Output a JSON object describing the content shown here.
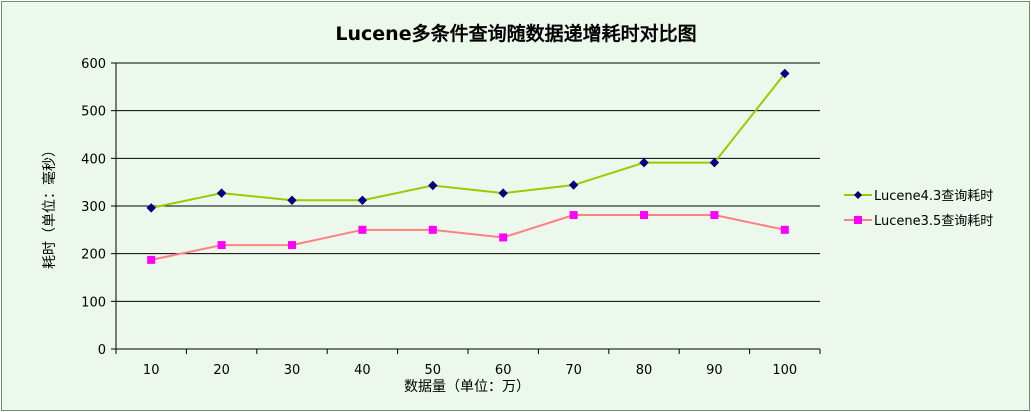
{
  "chart_data": {
    "type": "line",
    "title": "Lucene多条件查询随数据递增耗时对比图",
    "xlabel": "数据量（单位：万）",
    "ylabel": "耗时（单位：毫秒）",
    "categories": [
      "10",
      "20",
      "30",
      "40",
      "50",
      "60",
      "70",
      "80",
      "90",
      "100"
    ],
    "ylim": [
      0,
      600
    ],
    "yticks": [
      0,
      100,
      200,
      300,
      400,
      500,
      600
    ],
    "grid": true,
    "legend_position": "right",
    "series": [
      {
        "name": "Lucene4.3查询耗时",
        "values": [
          296,
          327,
          312,
          312,
          343,
          327,
          344,
          391,
          391,
          578
        ],
        "color": "#99cc00",
        "marker": "diamond",
        "marker_color": "#000080"
      },
      {
        "name": "Lucene3.5查询耗时",
        "values": [
          187,
          218,
          218,
          250,
          250,
          234,
          281,
          281,
          281,
          250
        ],
        "color": "#ff8080",
        "marker": "square",
        "marker_color": "#ff00ff"
      }
    ]
  }
}
